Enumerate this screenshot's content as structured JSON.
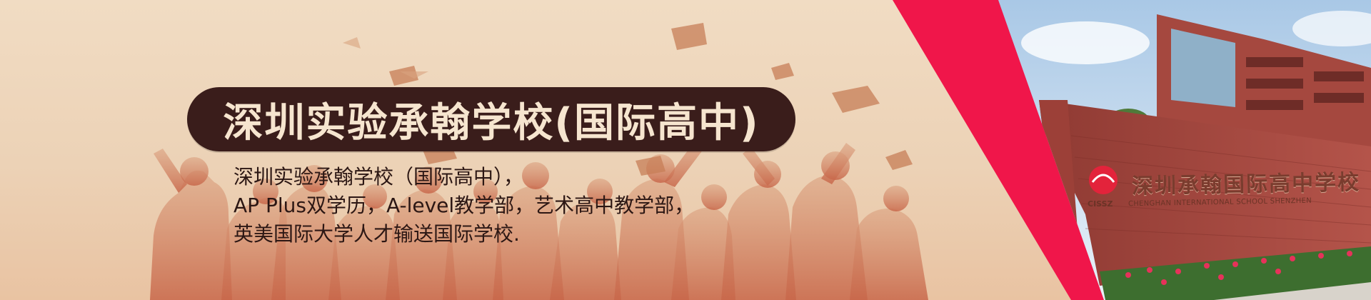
{
  "banner": {
    "title": "深圳实验承翰学校(国际高中)",
    "description": [
      "深圳实验承翰学校（国际高中），",
      "AP Plus双学历，A-level教学部，艺术高中教学部，",
      "英美国际大学人才输送国际学校."
    ]
  },
  "school_sign": {
    "chinese_text": "深圳承翰国际高中学校",
    "english_text": "CHENGHAN INTERNATIONAL SCHOOL SHENZHEN",
    "logo_caption": "CISSZ"
  },
  "colors": {
    "background": "#ecd2b6",
    "title_pill": "#3a1d1b",
    "title_text": "#f6e5cf",
    "accent_red": "#f0164a",
    "brick": "#a8483e"
  }
}
